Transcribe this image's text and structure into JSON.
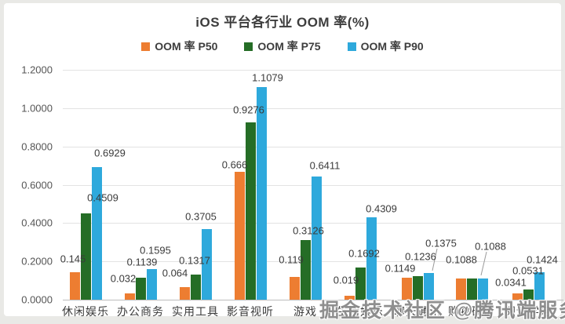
{
  "page": {
    "watermark": "掘金技术社区 @腾讯端服务"
  },
  "chart_data": {
    "type": "bar",
    "title": "iOS 平台各行业 OOM 率(%)",
    "categories": [
      "休闲娱乐",
      "办公商务",
      "实用工具",
      "影音视听",
      "游戏",
      "生活娱乐",
      "聊天通讯",
      "购物砍价",
      "阅读学习"
    ],
    "series": [
      {
        "name": "OOM 率 P50",
        "color": "#ED7D31",
        "values": [
          0.145,
          0.032,
          0.064,
          0.666,
          0.119,
          0.019,
          0.1149,
          0.1088,
          0.0341
        ],
        "labels": [
          "0.145",
          "0.032",
          "0.064",
          "0.666",
          "0.119",
          "0.019",
          "0.1149",
          "0.1088",
          "0.0341"
        ]
      },
      {
        "name": "OOM 率 P75",
        "color": "#256D26",
        "values": [
          0.4509,
          0.1139,
          0.1317,
          0.9276,
          0.3126,
          0.1692,
          0.1236,
          0.1088,
          0.0531
        ],
        "labels": [
          "0.4509",
          "0.1139",
          "0.1317",
          "0.9276",
          "0.3126",
          "0.1692",
          "0.1236",
          "0.1088",
          "0.0531"
        ]
      },
      {
        "name": "OOM 率 P90",
        "color": "#2EA9DC",
        "values": [
          0.6929,
          0.1595,
          0.3705,
          1.1079,
          0.6411,
          0.4309,
          0.1375,
          0.1088,
          0.1424
        ],
        "labels": [
          "0.6929",
          "0.1595",
          "0.3705",
          "1.1079",
          "0.6411",
          "0.4309",
          "0.1375",
          "0.1088",
          "0.1424"
        ]
      }
    ],
    "y_ticks": [
      "1.2000",
      "1.0000",
      "0.8000",
      "0.6000",
      "0.4000",
      "0.2000",
      "0.0000"
    ],
    "ylim": [
      0,
      1.2
    ],
    "grid": true,
    "legend_position": "top"
  }
}
